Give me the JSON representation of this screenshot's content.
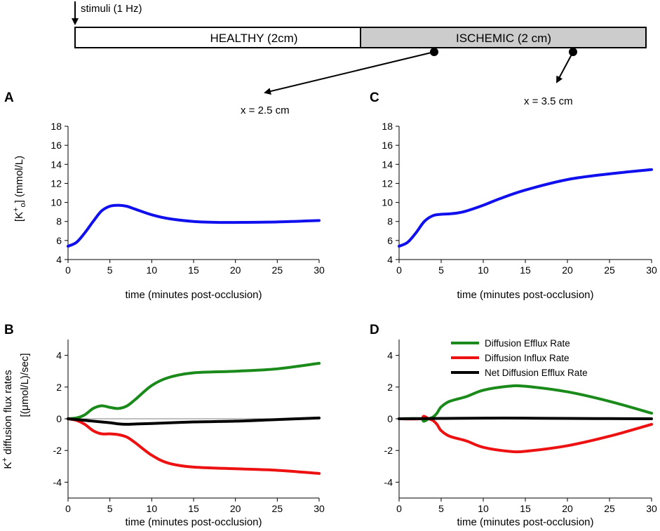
{
  "schematic": {
    "stimulus_label": "stimuli (1 Hz)",
    "healthy_label": "HEALTHY (2cm)",
    "ischemic_label": "ISCHEMIC (2 cm)",
    "healthy_color": "#ffffff",
    "ischemic_color": "#cccccc",
    "marker_a_label": "x = 2.5 cm",
    "marker_c_label": "x = 3.5 cm"
  },
  "colors": {
    "efflux": "#1a8a1a",
    "influx": "#ee1111",
    "net": "#000000",
    "potassium": "#1010ee"
  },
  "legend": {
    "efflux": "Diffusion Efflux Rate",
    "influx": "Diffusion Influx Rate",
    "net": "Net Diffusion Efflux Rate"
  },
  "chart_data": [
    {
      "panel": "A",
      "type": "line",
      "xlabel": "time (minutes post-occlusion)",
      "ylabel_main": "[K",
      "ylabel_sup": "+",
      "ylabel_sub": "o",
      "ylabel_end": "] (mmol/L)",
      "xlim": [
        0,
        30
      ],
      "ylim": [
        4,
        18
      ],
      "xticks": [
        0,
        5,
        10,
        15,
        20,
        25,
        30
      ],
      "yticks": [
        4,
        6,
        8,
        10,
        12,
        14,
        16,
        18
      ],
      "series": [
        {
          "name": "K+o",
          "color_key": "potassium",
          "x": [
            0,
            1,
            2,
            3,
            4,
            5,
            6,
            7,
            8,
            10,
            12,
            15,
            18,
            20,
            25,
            30
          ],
          "y": [
            5.4,
            5.8,
            6.8,
            8.0,
            9.1,
            9.6,
            9.7,
            9.6,
            9.3,
            8.7,
            8.3,
            8.0,
            7.9,
            7.9,
            7.95,
            8.1
          ]
        }
      ]
    },
    {
      "panel": "C",
      "type": "line",
      "xlabel": "time (minutes post-occlusion)",
      "xlim": [
        0,
        30
      ],
      "ylim": [
        4,
        18
      ],
      "xticks": [
        0,
        5,
        10,
        15,
        20,
        25,
        30
      ],
      "yticks": [
        4,
        6,
        8,
        10,
        12,
        14,
        16,
        18
      ],
      "series": [
        {
          "name": "K+o",
          "color_key": "potassium",
          "x": [
            0,
            1,
            2,
            3,
            4,
            5,
            6,
            7,
            8,
            10,
            12,
            15,
            20,
            25,
            30
          ],
          "y": [
            5.4,
            5.8,
            6.8,
            8.0,
            8.6,
            8.75,
            8.8,
            8.9,
            9.1,
            9.7,
            10.4,
            11.3,
            12.4,
            13.0,
            13.45
          ]
        }
      ]
    },
    {
      "panel": "B",
      "type": "line",
      "xlabel": "time (minutes post-occlusion)",
      "ylabel_line1_pre": "K",
      "ylabel_line1_sup": "+",
      "ylabel_line1_post": " diffusion flux rates",
      "ylabel_line2": "[(μmol/L)/sec]",
      "xlim": [
        0,
        30
      ],
      "ylim": [
        -5,
        5
      ],
      "xticks": [
        0,
        5,
        10,
        15,
        20,
        25,
        30
      ],
      "yticks": [
        -4,
        -2,
        0,
        2,
        4
      ],
      "series": [
        {
          "name": "Diffusion Efflux Rate",
          "color_key": "efflux",
          "x": [
            0,
            1,
            2,
            3,
            4,
            5,
            6,
            7,
            8,
            10,
            12,
            15,
            20,
            25,
            30
          ],
          "y": [
            0,
            0.05,
            0.25,
            0.65,
            0.82,
            0.72,
            0.65,
            0.8,
            1.2,
            2.1,
            2.6,
            2.9,
            3.0,
            3.15,
            3.5
          ]
        },
        {
          "name": "Diffusion Influx Rate",
          "color_key": "influx",
          "x": [
            0,
            1,
            2,
            3,
            4,
            5,
            6,
            7,
            8,
            10,
            12,
            15,
            20,
            25,
            30
          ],
          "y": [
            0,
            -0.1,
            -0.35,
            -0.75,
            -0.95,
            -0.95,
            -1.0,
            -1.15,
            -1.5,
            -2.3,
            -2.8,
            -3.05,
            -3.15,
            -3.25,
            -3.45
          ]
        },
        {
          "name": "Net Diffusion Efflux Rate",
          "color_key": "net",
          "x": [
            0,
            2,
            4,
            5,
            6,
            7,
            8,
            10,
            15,
            20,
            25,
            30
          ],
          "y": [
            0,
            -0.1,
            -0.2,
            -0.25,
            -0.32,
            -0.35,
            -0.33,
            -0.3,
            -0.2,
            -0.15,
            -0.05,
            0.05
          ]
        }
      ]
    },
    {
      "panel": "D",
      "type": "line",
      "xlabel": "time (minutes post-occlusion)",
      "xlim": [
        0,
        30
      ],
      "ylim": [
        -5,
        5
      ],
      "xticks": [
        0,
        5,
        10,
        15,
        20,
        25,
        30
      ],
      "yticks": [
        -4,
        -2,
        0,
        2,
        4
      ],
      "series": [
        {
          "name": "Diffusion Efflux Rate",
          "color_key": "efflux",
          "x": [
            0,
            2.5,
            2.9,
            3.2,
            3.5,
            4,
            4.5,
            5,
            6,
            8,
            10,
            13,
            15,
            20,
            25,
            30
          ],
          "y": [
            0,
            0,
            -0.15,
            -0.1,
            0,
            0.1,
            0.35,
            0.75,
            1.1,
            1.4,
            1.8,
            2.05,
            2.05,
            1.7,
            1.1,
            0.35
          ]
        },
        {
          "name": "Diffusion Influx Rate",
          "color_key": "influx",
          "x": [
            0,
            2.5,
            2.9,
            3.2,
            3.5,
            4,
            4.5,
            5,
            6,
            8,
            10,
            13,
            15,
            20,
            25,
            30
          ],
          "y": [
            0,
            0,
            0.15,
            0.1,
            0,
            -0.1,
            -0.35,
            -0.75,
            -1.1,
            -1.4,
            -1.8,
            -2.05,
            -2.05,
            -1.7,
            -1.1,
            -0.35
          ]
        },
        {
          "name": "Net Diffusion Efflux Rate",
          "color_key": "net",
          "x": [
            0,
            5,
            10,
            15,
            20,
            25,
            30
          ],
          "y": [
            0,
            0.02,
            0.04,
            0.04,
            0.02,
            0.01,
            0.0
          ]
        }
      ]
    }
  ],
  "panel_labels": {
    "A": "A",
    "B": "B",
    "C": "C",
    "D": "D"
  }
}
